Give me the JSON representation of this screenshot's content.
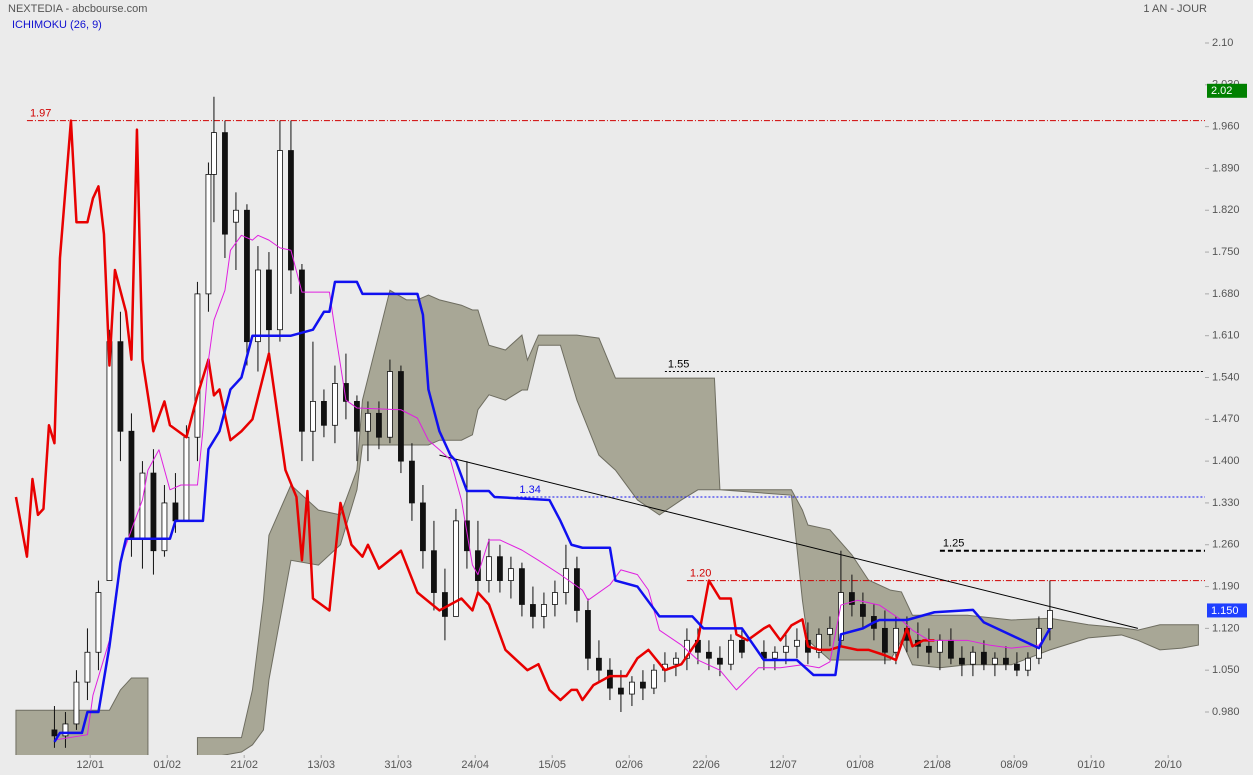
{
  "chart_data": {
    "type": "candlestick",
    "title": "NEXTEDIA - abcbourse.com",
    "subtitle": "ICHIMOKU (26, 9)",
    "period": "1 AN - JOUR",
    "xlim": [
      -2.9,
      216.2
    ],
    "ylim": [
      0.908,
      2.172
    ],
    "xticks": [
      {
        "value": 13.5,
        "label": "12/01"
      },
      {
        "value": 27.5,
        "label": "01/02"
      },
      {
        "value": 41.5,
        "label": "21/02"
      },
      {
        "value": 55.5,
        "label": "13/03"
      },
      {
        "value": 69.5,
        "label": "31/03"
      },
      {
        "value": 83.5,
        "label": "24/04"
      },
      {
        "value": 97.5,
        "label": "15/05"
      },
      {
        "value": 111.5,
        "label": "02/06"
      },
      {
        "value": 125.5,
        "label": "22/06"
      },
      {
        "value": 139.5,
        "label": "12/07"
      },
      {
        "value": 153.5,
        "label": "01/08"
      },
      {
        "value": 167.5,
        "label": "21/08"
      },
      {
        "value": 181.5,
        "label": "08/09"
      },
      {
        "value": 195.5,
        "label": "01/10"
      },
      {
        "value": 209.5,
        "label": "20/10"
      }
    ],
    "yticks": [
      {
        "value": 2.1,
        "label": "2.10"
      },
      {
        "value": 2.03,
        "label": "2.030"
      },
      {
        "value": 1.96,
        "label": "1.960"
      },
      {
        "value": 1.89,
        "label": "1.890"
      },
      {
        "value": 1.82,
        "label": "1.820"
      },
      {
        "value": 1.75,
        "label": "1.750"
      },
      {
        "value": 1.68,
        "label": "1.680"
      },
      {
        "value": 1.61,
        "label": "1.610"
      },
      {
        "value": 1.54,
        "label": "1.540"
      },
      {
        "value": 1.47,
        "label": "1.470"
      },
      {
        "value": 1.4,
        "label": "1.400"
      },
      {
        "value": 1.33,
        "label": "1.330"
      },
      {
        "value": 1.26,
        "label": "1.260"
      },
      {
        "value": 1.19,
        "label": "1.190"
      },
      {
        "value": 1.12,
        "label": "1.120"
      },
      {
        "value": 1.05,
        "label": "1.050"
      },
      {
        "value": 0.98,
        "label": "0.980"
      }
    ],
    "candles": {
      "x": [
        7,
        9,
        11,
        13,
        15,
        17,
        19,
        21,
        23,
        25,
        27,
        29,
        31,
        33,
        35,
        36,
        38,
        40,
        42,
        44,
        46,
        48,
        50,
        52,
        54,
        56,
        58,
        60,
        62,
        64,
        66,
        68,
        70,
        72,
        74,
        76,
        78,
        80,
        82,
        84,
        86,
        88,
        90,
        92,
        94,
        96,
        98,
        100,
        102,
        104,
        106,
        108,
        110,
        112,
        114,
        116,
        118,
        120,
        122,
        124,
        126,
        128,
        130,
        132,
        136,
        138,
        140,
        142,
        144,
        146,
        148,
        150,
        152,
        154,
        156,
        158,
        160,
        162,
        164,
        166,
        168,
        170,
        172,
        174,
        176,
        178,
        180,
        182,
        184,
        186,
        188
      ],
      "open": [
        0.95,
        0.94,
        0.96,
        1.03,
        1.08,
        1.2,
        1.6,
        1.45,
        1.27,
        1.38,
        1.25,
        1.33,
        1.3,
        1.44,
        1.68,
        1.88,
        1.95,
        1.8,
        1.82,
        1.6,
        1.72,
        1.62,
        1.92,
        1.72,
        1.45,
        1.5,
        1.46,
        1.53,
        1.5,
        1.45,
        1.48,
        1.44,
        1.55,
        1.4,
        1.33,
        1.25,
        1.18,
        1.14,
        1.3,
        1.25,
        1.2,
        1.24,
        1.2,
        1.22,
        1.16,
        1.14,
        1.16,
        1.18,
        1.22,
        1.15,
        1.07,
        1.05,
        1.02,
        1.01,
        1.03,
        1.02,
        1.05,
        1.06,
        1.07,
        1.1,
        1.08,
        1.07,
        1.06,
        1.1,
        1.08,
        1.07,
        1.08,
        1.09,
        1.1,
        1.08,
        1.11,
        1.1,
        1.18,
        1.16,
        1.14,
        1.12,
        1.08,
        1.12,
        1.1,
        1.09,
        1.08,
        1.1,
        1.07,
        1.06,
        1.08,
        1.06,
        1.07,
        1.06,
        1.05,
        1.07,
        1.12
      ],
      "high": [
        0.99,
        0.98,
        1.05,
        1.12,
        1.2,
        1.62,
        1.65,
        1.48,
        1.4,
        1.42,
        1.36,
        1.38,
        1.46,
        1.7,
        1.9,
        2.01,
        1.97,
        1.85,
        1.83,
        1.76,
        1.75,
        1.97,
        1.97,
        1.73,
        1.6,
        1.52,
        1.56,
        1.58,
        1.51,
        1.5,
        1.5,
        1.57,
        1.56,
        1.43,
        1.36,
        1.3,
        1.22,
        1.32,
        1.4,
        1.3,
        1.27,
        1.26,
        1.24,
        1.23,
        1.19,
        1.18,
        1.2,
        1.26,
        1.24,
        1.17,
        1.1,
        1.07,
        1.05,
        1.04,
        1.05,
        1.06,
        1.08,
        1.08,
        1.12,
        1.12,
        1.1,
        1.09,
        1.11,
        1.12,
        1.1,
        1.09,
        1.11,
        1.12,
        1.13,
        1.12,
        1.14,
        1.25,
        1.21,
        1.18,
        1.16,
        1.15,
        1.14,
        1.14,
        1.13,
        1.12,
        1.11,
        1.12,
        1.09,
        1.09,
        1.1,
        1.08,
        1.09,
        1.08,
        1.08,
        1.14,
        1.2
      ],
      "low": [
        0.92,
        0.92,
        0.95,
        1.0,
        1.05,
        1.2,
        1.4,
        1.24,
        1.22,
        1.21,
        1.24,
        1.28,
        1.3,
        1.4,
        1.65,
        1.8,
        1.74,
        1.72,
        1.56,
        1.55,
        1.58,
        1.6,
        1.68,
        1.4,
        1.4,
        1.44,
        1.43,
        1.47,
        1.4,
        1.4,
        1.42,
        1.43,
        1.38,
        1.3,
        1.22,
        1.15,
        1.1,
        1.14,
        1.22,
        1.18,
        1.18,
        1.18,
        1.17,
        1.14,
        1.12,
        1.12,
        1.14,
        1.16,
        1.13,
        1.05,
        1.03,
        1.0,
        0.98,
        0.99,
        1.0,
        1.01,
        1.03,
        1.04,
        1.05,
        1.06,
        1.05,
        1.04,
        1.05,
        1.07,
        1.05,
        1.05,
        1.06,
        1.07,
        1.06,
        1.07,
        1.09,
        1.09,
        1.14,
        1.12,
        1.1,
        1.06,
        1.06,
        1.08,
        1.07,
        1.06,
        1.05,
        1.06,
        1.04,
        1.04,
        1.05,
        1.04,
        1.05,
        1.04,
        1.04,
        1.06,
        1.1
      ],
      "close": [
        0.94,
        0.96,
        1.03,
        1.08,
        1.18,
        1.6,
        1.45,
        1.27,
        1.38,
        1.25,
        1.33,
        1.3,
        1.44,
        1.68,
        1.88,
        1.95,
        1.78,
        1.82,
        1.6,
        1.72,
        1.62,
        1.92,
        1.72,
        1.45,
        1.5,
        1.46,
        1.53,
        1.5,
        1.45,
        1.48,
        1.44,
        1.55,
        1.4,
        1.33,
        1.25,
        1.18,
        1.14,
        1.3,
        1.25,
        1.2,
        1.24,
        1.2,
        1.22,
        1.16,
        1.14,
        1.16,
        1.18,
        1.22,
        1.15,
        1.07,
        1.05,
        1.02,
        1.01,
        1.03,
        1.02,
        1.05,
        1.06,
        1.07,
        1.1,
        1.08,
        1.07,
        1.06,
        1.1,
        1.08,
        1.07,
        1.08,
        1.09,
        1.1,
        1.08,
        1.11,
        1.12,
        1.18,
        1.16,
        1.14,
        1.12,
        1.08,
        1.12,
        1.1,
        1.09,
        1.08,
        1.1,
        1.07,
        1.06,
        1.08,
        1.06,
        1.07,
        1.06,
        1.05,
        1.07,
        1.12,
        1.15
      ]
    },
    "series": [
      {
        "color": "#e80000",
        "width": 2.5,
        "x": [
          0,
          2,
          3,
          4,
          5,
          6,
          7,
          8,
          10,
          11,
          13,
          14,
          15,
          16,
          17,
          18,
          20,
          21,
          22,
          23,
          25,
          27,
          28,
          31,
          33,
          35,
          36,
          37,
          39,
          41,
          43,
          46,
          49,
          51,
          52,
          53,
          54,
          57,
          59,
          61,
          63,
          64,
          66,
          70,
          73,
          77,
          81,
          83,
          84,
          86,
          89,
          91,
          93,
          95,
          97,
          99,
          101,
          102,
          103,
          105,
          108,
          111,
          113,
          115,
          118,
          121,
          124,
          126,
          128,
          130,
          131,
          133,
          136,
          137,
          139,
          141,
          143,
          144,
          146,
          148,
          150,
          153,
          155,
          158,
          160,
          162,
          163,
          165,
          167
        ],
        "values": [
          1.34,
          1.24,
          1.37,
          1.31,
          1.32,
          1.46,
          1.43,
          1.74,
          1.97,
          1.8,
          1.8,
          1.84,
          1.86,
          1.78,
          1.56,
          1.72,
          1.65,
          1.57,
          1.955,
          1.57,
          1.45,
          1.5,
          1.46,
          1.44,
          1.51,
          1.57,
          1.51,
          1.52,
          1.435,
          1.45,
          1.47,
          1.58,
          1.385,
          1.34,
          1.234,
          1.35,
          1.17,
          1.15,
          1.33,
          1.26,
          1.24,
          1.26,
          1.22,
          1.25,
          1.18,
          1.15,
          1.17,
          1.15,
          1.18,
          1.16,
          1.084,
          1.067,
          1.05,
          1.06,
          1.017,
          1.0,
          1.017,
          1.017,
          1.0,
          1.025,
          1.04,
          1.04,
          1.07,
          1.084,
          1.05,
          1.06,
          1.1,
          1.2,
          1.17,
          1.17,
          1.11,
          1.1,
          1.12,
          1.125,
          1.1,
          1.125,
          1.135,
          1.09,
          1.084,
          1.084,
          1.09,
          1.084,
          1.084,
          1.075,
          1.067,
          1.12,
          1.09,
          1.1,
          1.1
        ]
      },
      {
        "color": "#e020e0",
        "width": 1,
        "x": [
          7,
          13,
          14,
          17,
          19,
          21,
          23,
          24,
          26,
          28,
          30,
          33,
          34,
          35,
          36,
          38,
          39,
          41,
          43,
          44,
          46,
          48,
          50,
          52,
          57,
          58,
          60,
          62,
          70,
          73,
          75,
          77,
          79,
          81,
          83,
          84,
          86,
          88,
          92,
          95,
          99,
          103,
          104,
          108,
          110,
          113,
          115,
          117,
          121,
          124,
          128,
          131,
          135,
          139,
          143,
          146,
          148,
          150,
          153,
          157,
          161,
          163,
          166,
          170,
          173,
          177,
          181,
          186,
          188
        ],
        "values": [
          0.933,
          0.942,
          1.008,
          1.1,
          1.234,
          1.285,
          1.335,
          1.385,
          1.419,
          1.352,
          1.36,
          1.36,
          1.452,
          1.569,
          1.636,
          1.686,
          1.753,
          1.778,
          1.77,
          1.778,
          1.77,
          1.757,
          1.753,
          1.683,
          1.683,
          1.62,
          1.502,
          1.489,
          1.486,
          1.472,
          1.435,
          1.419,
          1.402,
          1.335,
          1.226,
          1.21,
          1.268,
          1.268,
          1.251,
          1.234,
          1.21,
          1.184,
          1.167,
          1.193,
          1.218,
          1.21,
          1.184,
          1.117,
          1.092,
          1.067,
          1.05,
          1.017,
          1.054,
          1.054,
          1.059,
          1.054,
          1.064,
          1.159,
          1.167,
          1.159,
          1.134,
          1.117,
          1.1,
          1.1,
          1.1,
          1.092,
          1.087,
          1.092,
          1.117
        ]
      },
      {
        "color": "#1010f0",
        "width": 2.5,
        "x": [
          7,
          8,
          12,
          13,
          15,
          17,
          19,
          20,
          28,
          29,
          34,
          35,
          37,
          39,
          41,
          43,
          50,
          54,
          56,
          57,
          58,
          62,
          63,
          73,
          74,
          75,
          77,
          79,
          80,
          82,
          86,
          87,
          97,
          99,
          101,
          103,
          108,
          109,
          113,
          117,
          123,
          125,
          132,
          136,
          142,
          145,
          149,
          150,
          154,
          156,
          157,
          162,
          167,
          174,
          176,
          186,
          188
        ],
        "values": [
          0.93,
          0.945,
          0.945,
          0.98,
          0.98,
          1.09,
          1.23,
          1.27,
          1.27,
          1.3,
          1.3,
          1.42,
          1.45,
          1.52,
          1.54,
          1.61,
          1.61,
          1.62,
          1.65,
          1.65,
          1.7,
          1.7,
          1.68,
          1.68,
          1.645,
          1.52,
          1.45,
          1.41,
          1.4,
          1.35,
          1.35,
          1.34,
          1.335,
          1.3,
          1.26,
          1.255,
          1.255,
          1.2,
          1.19,
          1.14,
          1.14,
          1.12,
          1.12,
          1.067,
          1.067,
          1.042,
          1.042,
          1.11,
          1.12,
          1.13,
          1.134,
          1.134,
          1.147,
          1.151,
          1.13,
          1.087,
          1.12
        ]
      }
    ],
    "cloud": {
      "color": "#a8a796",
      "x": [
        0,
        17,
        19,
        21,
        24,
        28,
        33,
        41,
        43,
        45,
        46,
        50,
        55,
        59,
        62,
        63,
        68,
        71,
        73,
        75,
        77,
        81,
        83,
        84,
        86,
        89,
        92,
        93,
        95,
        99,
        102,
        106,
        109,
        113,
        117,
        121,
        124,
        127,
        128,
        141,
        143,
        144,
        148,
        152,
        155,
        159,
        161,
        163,
        168,
        173,
        181,
        188,
        195,
        201,
        204,
        208,
        212,
        215
      ],
      "upper": [
        0.983,
        0.983,
        1.017,
        1.037,
        1.037,
        null,
        0.937,
        0.937,
        1.017,
        1.167,
        1.276,
        1.36,
        1.318,
        1.31,
        1.385,
        1.502,
        1.686,
        1.67,
        1.67,
        1.678,
        1.67,
        1.661,
        1.653,
        1.653,
        1.594,
        1.586,
        1.611,
        1.569,
        1.611,
        1.611,
        1.611,
        1.606,
        1.539,
        1.539,
        1.539,
        1.539,
        1.539,
        1.539,
        1.352,
        1.352,
        1.318,
        1.293,
        1.285,
        1.243,
        1.201,
        1.184,
        1.181,
        1.142,
        1.142,
        1.142,
        1.134,
        1.137,
        1.126,
        1.121,
        1.117,
        1.126,
        1.126,
        1.126
      ],
      "lower": [
        0.88,
        0.88,
        0.88,
        0.88,
        0.88,
        null,
        0.9,
        0.913,
        0.925,
        0.95,
        1.034,
        1.234,
        1.226,
        1.26,
        1.352,
        1.427,
        1.427,
        1.427,
        1.427,
        1.427,
        1.435,
        1.435,
        1.444,
        1.486,
        1.511,
        1.502,
        1.519,
        1.519,
        1.594,
        1.594,
        1.502,
        1.41,
        1.385,
        1.335,
        1.31,
        1.335,
        1.352,
        1.352,
        1.352,
        1.343,
        1.167,
        1.1,
        1.067,
        1.067,
        1.067,
        1.067,
        1.1,
        1.059,
        1.054,
        1.059,
        1.059,
        1.084,
        1.104,
        1.109,
        1.1,
        1.084,
        1.087,
        1.092
      ]
    },
    "levels": [
      {
        "value": 1.97,
        "label": "1.97",
        "color": "#d00000",
        "style": "dashdot",
        "x_start": 2
      },
      {
        "value": 1.55,
        "label": "1.55",
        "color": "#000000",
        "style": "dotted",
        "x_start": 118
      },
      {
        "value": 1.34,
        "label": "1.34",
        "color": "#1010f0",
        "style": "dotted",
        "x_start": 91
      },
      {
        "value": 1.25,
        "label": "1.25",
        "color": "#000000",
        "style": "dashed",
        "x_start": 168
      },
      {
        "value": 1.2,
        "label": "1.20",
        "color": "#d00000",
        "style": "dashdot",
        "x_start": 122
      }
    ],
    "trendline": {
      "color": "#000000",
      "x": [
        77,
        204
      ],
      "values": [
        1.41,
        1.12
      ]
    },
    "price_tags": [
      {
        "value": 2.02,
        "label": "2.02",
        "color": "#008000"
      },
      {
        "value": 1.15,
        "label": "1.150",
        "color": "#1f3fff"
      }
    ]
  }
}
